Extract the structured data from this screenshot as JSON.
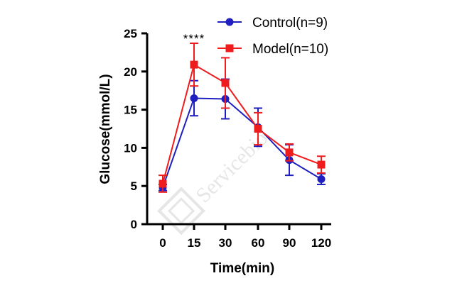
{
  "chart_data": {
    "type": "line",
    "xlabel": "Time(min)",
    "ylabel": "Glucose(mmol/L)",
    "categories": [
      "0",
      "15",
      "30",
      "60",
      "90",
      "120"
    ],
    "ylim": [
      0,
      25
    ],
    "yticks": [
      0,
      5,
      10,
      15,
      20,
      25
    ],
    "grid": false,
    "legend_position": "top-right",
    "series": [
      {
        "name": "Control(n=9)",
        "color": "#1f1fbf",
        "marker": "circle",
        "values": [
          4.8,
          16.5,
          16.4,
          12.7,
          8.4,
          5.9
        ],
        "error": [
          0.4,
          2.3,
          2.6,
          2.5,
          2.0,
          0.7
        ]
      },
      {
        "name": "Model(n=10)",
        "color": "#ee1c1c",
        "marker": "square",
        "values": [
          5.3,
          20.9,
          18.5,
          12.5,
          9.4,
          7.8
        ],
        "error": [
          1.1,
          2.8,
          3.3,
          2.1,
          1.1,
          1.1
        ]
      }
    ],
    "annotations": [
      {
        "text": "****",
        "category": "15"
      }
    ],
    "watermark": "Servicebio"
  }
}
